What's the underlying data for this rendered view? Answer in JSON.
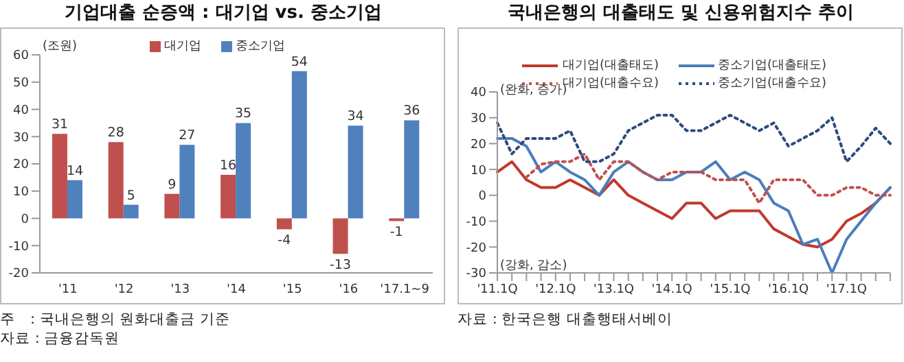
{
  "chart_data": [
    {
      "type": "bar",
      "title": "기업대출 순증액 : 대기업 vs. 중소기업",
      "categories": [
        "'11",
        "'12",
        "'13",
        "'14",
        "'15",
        "'16",
        "'17.1~9"
      ],
      "series": [
        {
          "name": "대기업",
          "color": "#c0504d",
          "values": [
            31,
            28,
            9,
            16,
            -4,
            -13,
            -1
          ]
        },
        {
          "name": "중소기업",
          "color": "#4f81bd",
          "values": [
            14,
            5,
            27,
            35,
            54,
            34,
            36
          ]
        }
      ],
      "ylim": [
        -20,
        60
      ],
      "yticks": [
        -20,
        -10,
        0,
        10,
        20,
        30,
        40,
        50,
        60
      ],
      "data_labels": true,
      "legend": "top",
      "grid": false,
      "annotations": [
        "(조원)",
        "주　: 국내은행의 원화대출금 기준",
        "자료 : 금융감독원"
      ]
    },
    {
      "type": "line",
      "title": "국내은행의 대출태도 및 신용위험지수 추이",
      "categories": [
        "'11.1Q",
        null,
        null,
        null,
        "'12.1Q",
        null,
        null,
        null,
        "'13.1Q",
        null,
        null,
        null,
        "'14.1Q",
        null,
        null,
        null,
        "'15.1Q",
        null,
        null,
        null,
        "'16.1Q",
        null,
        null,
        null,
        "'17.1Q",
        null,
        null,
        null
      ],
      "series": [
        {
          "name": "대기업(대출태도)",
          "color": "#c0392b",
          "line_style": "solid",
          "values": [
            9,
            13,
            6,
            3,
            3,
            6,
            3,
            0,
            6,
            0,
            -3,
            -6,
            -9,
            -3,
            -3,
            -9,
            -6,
            -6,
            -6,
            -13,
            -16,
            -19,
            -20,
            -17,
            -10,
            -7,
            -3,
            3
          ]
        },
        {
          "name": "중소기업(대출태도)",
          "color": "#4a7ebb",
          "line_style": "solid",
          "values": [
            22,
            22,
            19,
            9,
            13,
            9,
            6,
            0,
            9,
            13,
            9,
            6,
            6,
            9,
            9,
            13,
            6,
            9,
            6,
            -3,
            -6,
            -19,
            -17,
            -30,
            -17,
            -10,
            -3,
            3
          ]
        },
        {
          "name": "대기업(대출수요)",
          "color": "#c0504d",
          "line_style": "dotted",
          "values": [
            null,
            null,
            7,
            12,
            13,
            13,
            16,
            6,
            13,
            13,
            9,
            6,
            9,
            9,
            9,
            6,
            6,
            6,
            -3,
            6,
            6,
            6,
            0,
            0,
            3,
            3,
            0,
            0
          ]
        },
        {
          "name": "중소기업(대출수요)",
          "color": "#2e4a7d",
          "line_style": "dotted",
          "values": [
            28,
            16,
            22,
            22,
            22,
            25,
            13,
            13,
            16,
            25,
            28,
            31,
            31,
            25,
            25,
            28,
            31,
            28,
            25,
            28,
            19,
            22,
            25,
            30,
            13,
            19,
            26,
            20
          ]
        }
      ],
      "ylim": [
        -30,
        40
      ],
      "yticks": [
        -30,
        -20,
        -10,
        0,
        10,
        20,
        30,
        40
      ],
      "legend": "top",
      "marker": "none",
      "grid": false,
      "annotations": [
        "(완화, 증가)",
        "(강화, 감소)",
        "자료 : 한국은행 대출행태서베이"
      ]
    }
  ]
}
